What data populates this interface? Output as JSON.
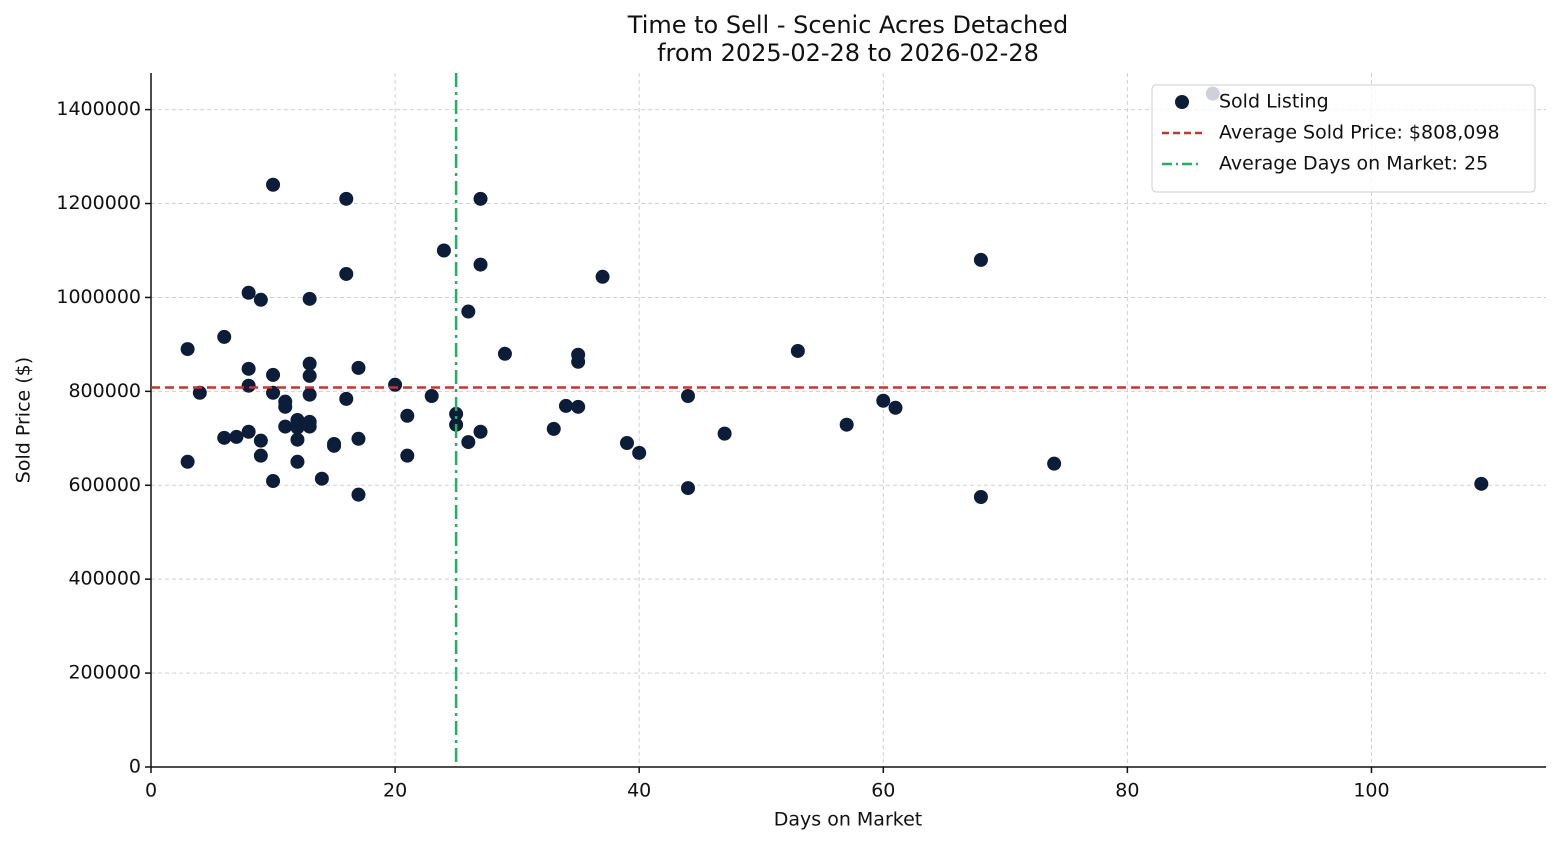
{
  "chart_data": {
    "type": "scatter",
    "title": "Time to Sell - Scenic Acres Detached",
    "subtitle": "from 2025-02-28 to 2026-02-28",
    "x_label": "Days on Market",
    "y_label": "Sold Price ($)",
    "xlim": [
      0,
      114.3
    ],
    "xticks": [
      0,
      20,
      40,
      60,
      80,
      100
    ],
    "ylim": [
      0,
      1478000
    ],
    "yticks": [
      0,
      200000,
      400000,
      600000,
      800000,
      1000000,
      1200000,
      1400000
    ],
    "grid": true,
    "legend": "upper right",
    "x": [
      3,
      3,
      4,
      6,
      6,
      7,
      8,
      8,
      8,
      8,
      9,
      9,
      9,
      10,
      10,
      10,
      10,
      11,
      11,
      11,
      12,
      12,
      12,
      12,
      13,
      13,
      13,
      13,
      13,
      13,
      14,
      15,
      15,
      16,
      16,
      16,
      17,
      17,
      17,
      20,
      21,
      21,
      23,
      24,
      25,
      25,
      26,
      26,
      27,
      27,
      27,
      29,
      33,
      34,
      35,
      35,
      35,
      37,
      39,
      40,
      44,
      44,
      47,
      53,
      57,
      60,
      61,
      68,
      68,
      74,
      87,
      109
    ],
    "series": [
      {
        "name": "Sold Listing",
        "color": "#0b1d38",
        "values": [
          890000,
          650000,
          797000,
          916000,
          701000,
          703000,
          1010000,
          848000,
          812000,
          714000,
          995000,
          695000,
          663000,
          1240000,
          835000,
          797000,
          609000,
          778000,
          767000,
          725000,
          739000,
          723000,
          697000,
          650000,
          997000,
          859000,
          833000,
          793000,
          735000,
          725000,
          614000,
          688000,
          684000,
          1210000,
          1050000,
          784000,
          850000,
          699000,
          580000,
          814000,
          748000,
          663000,
          790000,
          1100000,
          752000,
          729000,
          970000,
          692000,
          1210000,
          1070000,
          714000,
          880000,
          720000,
          769000,
          878000,
          863000,
          767000,
          1044000,
          690000,
          669000,
          790000,
          594000,
          710000,
          886000,
          729000,
          780000,
          765000,
          1080000,
          575000,
          646000,
          1434000,
          603000
        ]
      }
    ],
    "reference_lines": [
      {
        "axis": "y",
        "value": 808098,
        "name": "Average Sold Price: $808,098",
        "color": "#c0392b",
        "style": "dashed"
      },
      {
        "axis": "x",
        "value": 25,
        "name": "Average Days on Market: 25",
        "color": "#27ae60",
        "style": "dashdot"
      }
    ]
  }
}
